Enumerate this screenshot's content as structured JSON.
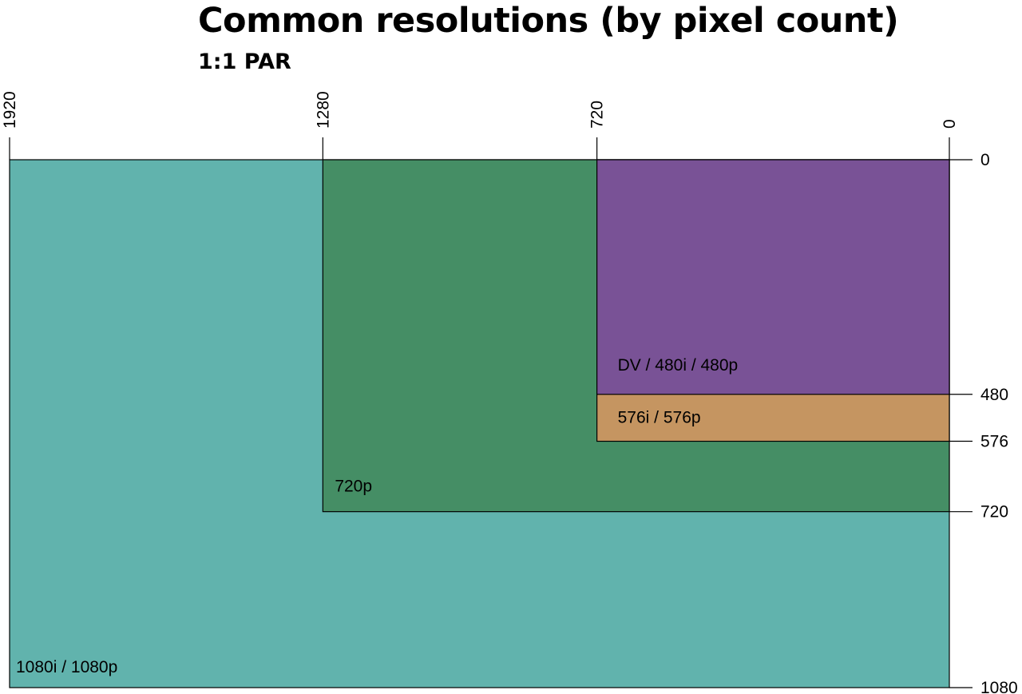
{
  "title": "Common resolutions (by pixel count)",
  "subtitle": "1:1 PAR",
  "x_axis": {
    "ticks": [
      {
        "value": 1920,
        "label": "1920"
      },
      {
        "value": 1280,
        "label": "1280"
      },
      {
        "value": 720,
        "label": "720"
      },
      {
        "value": 0,
        "label": "0"
      }
    ],
    "range": [
      1920,
      0
    ]
  },
  "y_axis": {
    "ticks": [
      {
        "value": 0,
        "label": "0"
      },
      {
        "value": 480,
        "label": "480"
      },
      {
        "value": 576,
        "label": "576"
      },
      {
        "value": 720,
        "label": "720"
      },
      {
        "value": 1080,
        "label": "1080"
      }
    ],
    "range": [
      0,
      1080
    ]
  },
  "regions": [
    {
      "id": "1080",
      "label": "1080i / 1080p",
      "width": 1920,
      "height": 1080,
      "color": "#61b3ad"
    },
    {
      "id": "720p",
      "label": "720p",
      "width": 1280,
      "height": 720,
      "color": "#458e65"
    },
    {
      "id": "576",
      "label": "576i / 576p",
      "width": 720,
      "height": 576,
      "color": "#c59561"
    },
    {
      "id": "480",
      "label": "DV / 480i / 480p",
      "width": 720,
      "height": 480,
      "color": "#795296"
    }
  ]
}
